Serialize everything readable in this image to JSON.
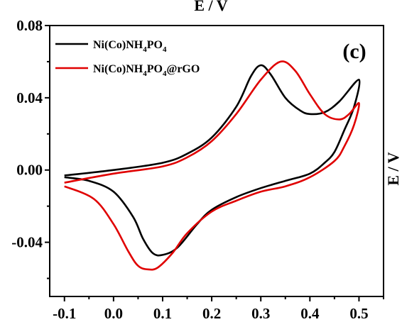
{
  "chart_data": {
    "type": "line",
    "top_label": "E / V",
    "right_label": "E / V",
    "panel_label": "(c)",
    "xlim": [
      -0.13,
      0.55
    ],
    "ylim": [
      -0.07,
      0.08
    ],
    "x_ticks": [
      -0.1,
      0.0,
      0.1,
      0.2,
      0.3,
      0.4,
      0.5
    ],
    "x_tick_labels": [
      "-0.1",
      "0.0",
      "0.1",
      "0.2",
      "0.3",
      "0.4",
      "0.5"
    ],
    "y_ticks": [
      -0.04,
      0.0,
      0.04,
      0.08
    ],
    "y_tick_labels": [
      "-0.04",
      "0.00",
      "0.04",
      "0.08"
    ],
    "legend_position": "top-left",
    "series": [
      {
        "name": "Ni(Co)NH4PO4",
        "legend": {
          "base": "Ni(Co)NH",
          "sub1": "4",
          "mid": "PO",
          "sub2": "4",
          "tail": ""
        },
        "color": "#000000",
        "points": [
          [
            -0.1,
            -0.003
          ],
          [
            0.0,
            0.0
          ],
          [
            0.1,
            0.004
          ],
          [
            0.15,
            0.009
          ],
          [
            0.2,
            0.018
          ],
          [
            0.25,
            0.035
          ],
          [
            0.28,
            0.052
          ],
          [
            0.3,
            0.058
          ],
          [
            0.32,
            0.053
          ],
          [
            0.35,
            0.04
          ],
          [
            0.38,
            0.033
          ],
          [
            0.4,
            0.031
          ],
          [
            0.43,
            0.032
          ],
          [
            0.46,
            0.038
          ],
          [
            0.5,
            0.05
          ],
          [
            0.49,
            0.035
          ],
          [
            0.47,
            0.022
          ],
          [
            0.45,
            0.01
          ],
          [
            0.43,
            0.004
          ],
          [
            0.4,
            -0.002
          ],
          [
            0.35,
            -0.006
          ],
          [
            0.3,
            -0.01
          ],
          [
            0.25,
            -0.015
          ],
          [
            0.2,
            -0.022
          ],
          [
            0.17,
            -0.03
          ],
          [
            0.13,
            -0.043
          ],
          [
            0.1,
            -0.047
          ],
          [
            0.08,
            -0.046
          ],
          [
            0.06,
            -0.038
          ],
          [
            0.04,
            -0.026
          ],
          [
            0.0,
            -0.012
          ],
          [
            -0.05,
            -0.006
          ],
          [
            -0.1,
            -0.004
          ]
        ]
      },
      {
        "name": "Ni(Co)NH4PO4@rGO",
        "legend": {
          "base": "Ni(Co)NH",
          "sub1": "4",
          "mid": "PO",
          "sub2": "4",
          "tail": "@rGO"
        },
        "color": "#e00000",
        "points": [
          [
            -0.1,
            -0.007
          ],
          [
            0.0,
            -0.002
          ],
          [
            0.1,
            0.002
          ],
          [
            0.15,
            0.007
          ],
          [
            0.2,
            0.016
          ],
          [
            0.25,
            0.031
          ],
          [
            0.3,
            0.05
          ],
          [
            0.34,
            0.06
          ],
          [
            0.37,
            0.055
          ],
          [
            0.4,
            0.042
          ],
          [
            0.43,
            0.031
          ],
          [
            0.46,
            0.028
          ],
          [
            0.48,
            0.031
          ],
          [
            0.5,
            0.037
          ],
          [
            0.49,
            0.025
          ],
          [
            0.47,
            0.013
          ],
          [
            0.45,
            0.005
          ],
          [
            0.4,
            -0.004
          ],
          [
            0.35,
            -0.009
          ],
          [
            0.3,
            -0.012
          ],
          [
            0.25,
            -0.017
          ],
          [
            0.2,
            -0.023
          ],
          [
            0.15,
            -0.035
          ],
          [
            0.12,
            -0.046
          ],
          [
            0.09,
            -0.054
          ],
          [
            0.07,
            -0.055
          ],
          [
            0.05,
            -0.053
          ],
          [
            0.03,
            -0.045
          ],
          [
            0.0,
            -0.03
          ],
          [
            -0.04,
            -0.016
          ],
          [
            -0.1,
            -0.009
          ]
        ]
      }
    ]
  }
}
